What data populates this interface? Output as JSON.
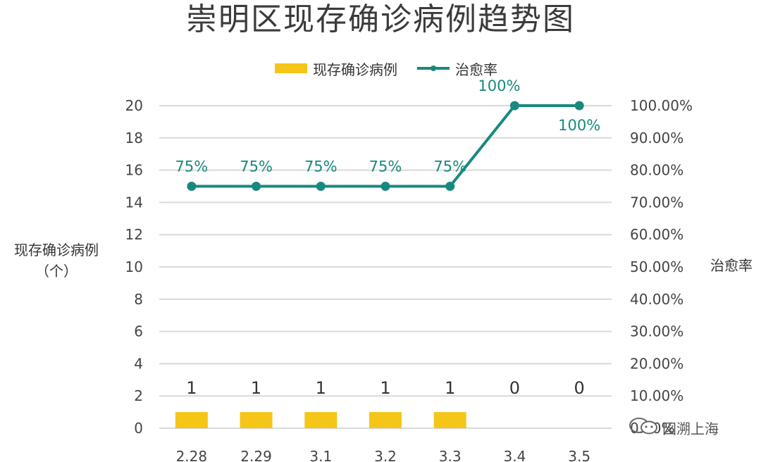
{
  "title": "崇明区现存确诊病例趋势图",
  "left_axis_title": [
    "现存确诊病例",
    "（个）"
  ],
  "right_axis_title": "治愈率",
  "watermark": "図溯上海",
  "colors": {
    "bar": "#f5c518",
    "line": "#178a7e",
    "grid": "#d9d9d9"
  },
  "chart_data": {
    "type": "bar",
    "categories": [
      "2.28",
      "2.29",
      "3.1",
      "3.2",
      "3.3",
      "3.4",
      "3.5"
    ],
    "series": [
      {
        "name": "现存确诊病例",
        "type": "bar",
        "axis": "left",
        "values": [
          1,
          1,
          1,
          1,
          1,
          0,
          0
        ],
        "labels": [
          "1",
          "1",
          "1",
          "1",
          "1",
          "0",
          "0"
        ]
      },
      {
        "name": "治愈率",
        "type": "line",
        "axis": "right",
        "values": [
          75,
          75,
          75,
          75,
          75,
          100,
          100
        ],
        "labels": [
          "75%",
          "75%",
          "75%",
          "75%",
          "75%",
          "100%",
          "100%"
        ]
      }
    ],
    "y_left": {
      "min": 0,
      "max": 20,
      "ticks": [
        "0",
        "2",
        "4",
        "6",
        "8",
        "10",
        "12",
        "14",
        "16",
        "18",
        "20"
      ]
    },
    "y_right": {
      "min": 0,
      "max": 100,
      "ticks": [
        "0.00%",
        "10.00%",
        "20.00%",
        "30.00%",
        "40.00%",
        "50.00%",
        "60.00%",
        "70.00%",
        "80.00%",
        "90.00%",
        "100.00%"
      ]
    },
    "grid": true,
    "legend": "top-center"
  }
}
